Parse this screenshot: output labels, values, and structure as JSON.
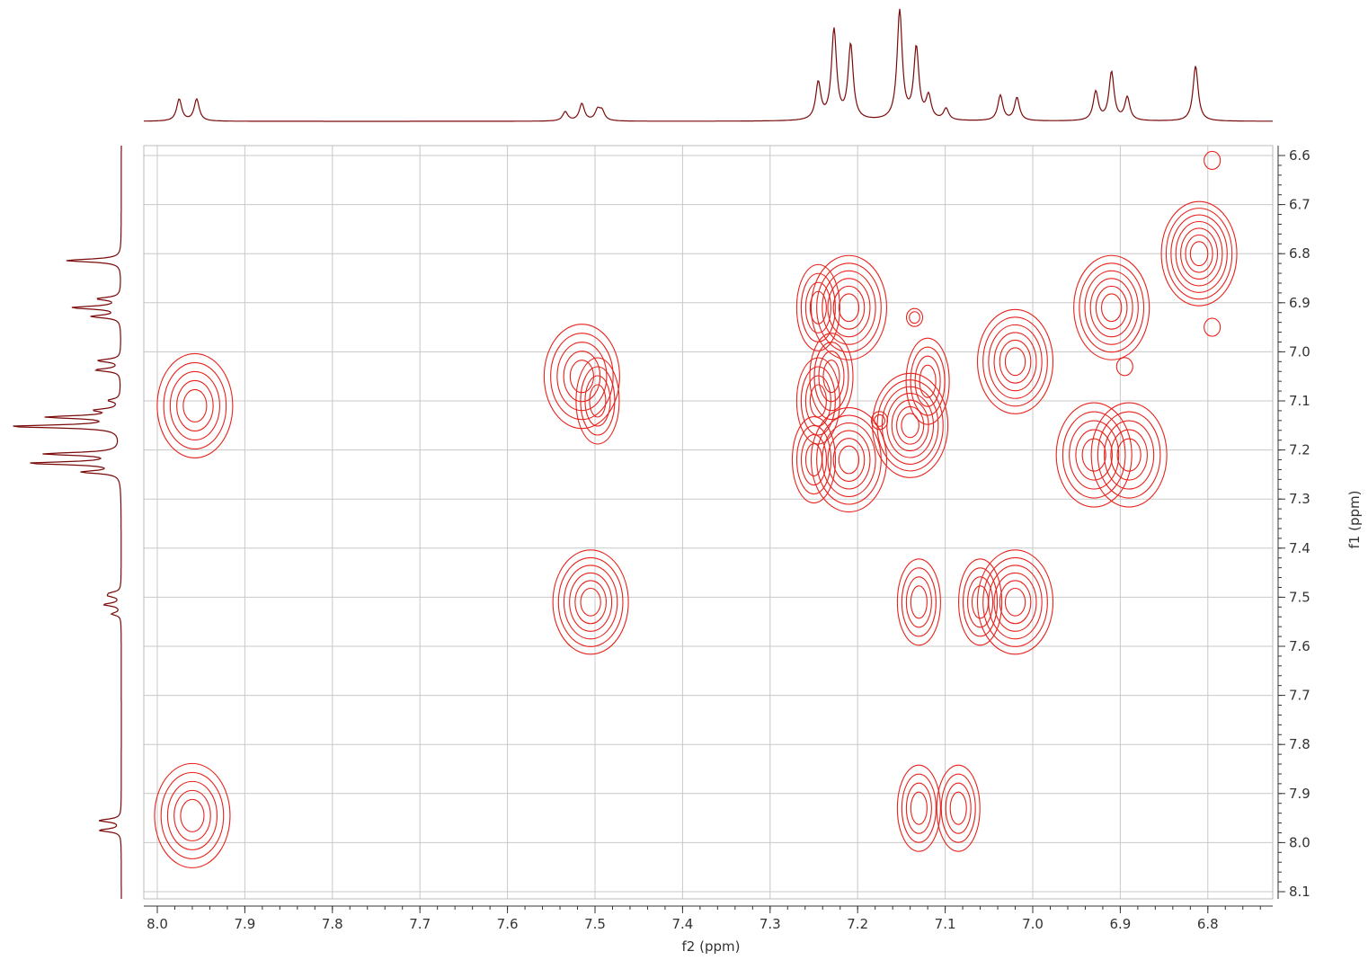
{
  "chart_data": {
    "type": "2d-nmr-contour",
    "xlabel": "f2 (ppm)",
    "ylabel": "f1 (ppm)",
    "xlim": [
      8.017,
      6.726
    ],
    "ylim": [
      6.578,
      8.113
    ],
    "x_ticks": [
      8.0,
      7.9,
      7.8,
      7.7,
      7.6,
      7.5,
      7.4,
      7.3,
      7.2,
      7.1,
      7.0,
      6.9,
      6.8
    ],
    "x_tick_labels": [
      "8.0",
      "7.9",
      "7.8",
      "7.7",
      "7.6",
      "7.5",
      "7.4",
      "7.3",
      "7.2",
      "7.1",
      "7.0",
      "6.9",
      "6.8"
    ],
    "y_ticks": [
      6.6,
      6.7,
      6.8,
      6.9,
      7.0,
      7.1,
      7.2,
      7.3,
      7.4,
      7.5,
      7.6,
      7.7,
      7.8,
      7.9,
      8.0,
      8.1
    ],
    "y_tick_labels": [
      "6.6",
      "6.7",
      "6.8",
      "6.9",
      "7.0",
      "7.1",
      "7.2",
      "7.3",
      "7.4",
      "7.5",
      "7.6",
      "7.7",
      "7.8",
      "7.9",
      "8.0",
      "8.1"
    ],
    "grid": true,
    "colors": {
      "contour": "#e8221c",
      "projection": "#7a0a0a",
      "grid": "#c8c8c8",
      "axis": "#333333"
    },
    "projection_peaks": [
      {
        "ppm": 7.975,
        "height": 0.19
      },
      {
        "ppm": 7.955,
        "height": 0.19
      },
      {
        "ppm": 7.534,
        "height": 0.08
      },
      {
        "ppm": 7.515,
        "height": 0.15
      },
      {
        "ppm": 7.497,
        "height": 0.09
      },
      {
        "ppm": 7.492,
        "height": 0.08
      },
      {
        "ppm": 7.245,
        "height": 0.32
      },
      {
        "ppm": 7.227,
        "height": 0.78
      },
      {
        "ppm": 7.208,
        "height": 0.65
      },
      {
        "ppm": 7.152,
        "height": 0.95
      },
      {
        "ppm": 7.133,
        "height": 0.62
      },
      {
        "ppm": 7.119,
        "height": 0.2
      },
      {
        "ppm": 7.099,
        "height": 0.1
      },
      {
        "ppm": 7.037,
        "height": 0.22
      },
      {
        "ppm": 7.018,
        "height": 0.2
      },
      {
        "ppm": 6.928,
        "height": 0.25
      },
      {
        "ppm": 6.91,
        "height": 0.42
      },
      {
        "ppm": 6.892,
        "height": 0.2
      },
      {
        "ppm": 6.814,
        "height": 0.48
      }
    ],
    "cross_peaks": [
      {
        "f2": 7.957,
        "f1": 7.11,
        "intensity": 5
      },
      {
        "f2": 7.96,
        "f1": 7.945,
        "intensity": 5
      },
      {
        "f2": 7.515,
        "f1": 7.05,
        "intensity": 5
      },
      {
        "f2": 7.497,
        "f1": 7.1,
        "intensity": 4
      },
      {
        "f2": 7.505,
        "f1": 7.51,
        "intensity": 6
      },
      {
        "f2": 7.21,
        "f1": 6.91,
        "intensity": 6
      },
      {
        "f2": 7.245,
        "f1": 6.91,
        "intensity": 4
      },
      {
        "f2": 7.23,
        "f1": 7.05,
        "intensity": 4
      },
      {
        "f2": 7.245,
        "f1": 7.1,
        "intensity": 4
      },
      {
        "f2": 7.21,
        "f1": 7.22,
        "intensity": 6
      },
      {
        "f2": 7.25,
        "f1": 7.22,
        "intensity": 4
      },
      {
        "f2": 7.14,
        "f1": 7.15,
        "intensity": 7
      },
      {
        "f2": 7.12,
        "f1": 7.06,
        "intensity": 4
      },
      {
        "f2": 7.02,
        "f1": 7.02,
        "intensity": 6
      },
      {
        "f2": 7.02,
        "f1": 7.51,
        "intensity": 6
      },
      {
        "f2": 7.06,
        "f1": 7.51,
        "intensity": 4
      },
      {
        "f2": 7.13,
        "f1": 7.51,
        "intensity": 4
      },
      {
        "f2": 7.13,
        "f1": 7.93,
        "intensity": 4
      },
      {
        "f2": 7.085,
        "f1": 7.93,
        "intensity": 4
      },
      {
        "f2": 6.91,
        "f1": 6.91,
        "intensity": 6
      },
      {
        "f2": 6.93,
        "f1": 7.21,
        "intensity": 5
      },
      {
        "f2": 6.89,
        "f1": 7.21,
        "intensity": 5
      },
      {
        "f2": 6.81,
        "f1": 6.8,
        "intensity": 7
      },
      {
        "f2": 7.135,
        "f1": 6.93,
        "intensity": 2
      },
      {
        "f2": 7.175,
        "f1": 7.14,
        "intensity": 2
      },
      {
        "f2": 6.895,
        "f1": 7.03,
        "intensity": 1
      },
      {
        "f2": 6.795,
        "f1": 6.95,
        "intensity": 1
      },
      {
        "f2": 6.795,
        "f1": 6.61,
        "intensity": 1
      }
    ]
  }
}
